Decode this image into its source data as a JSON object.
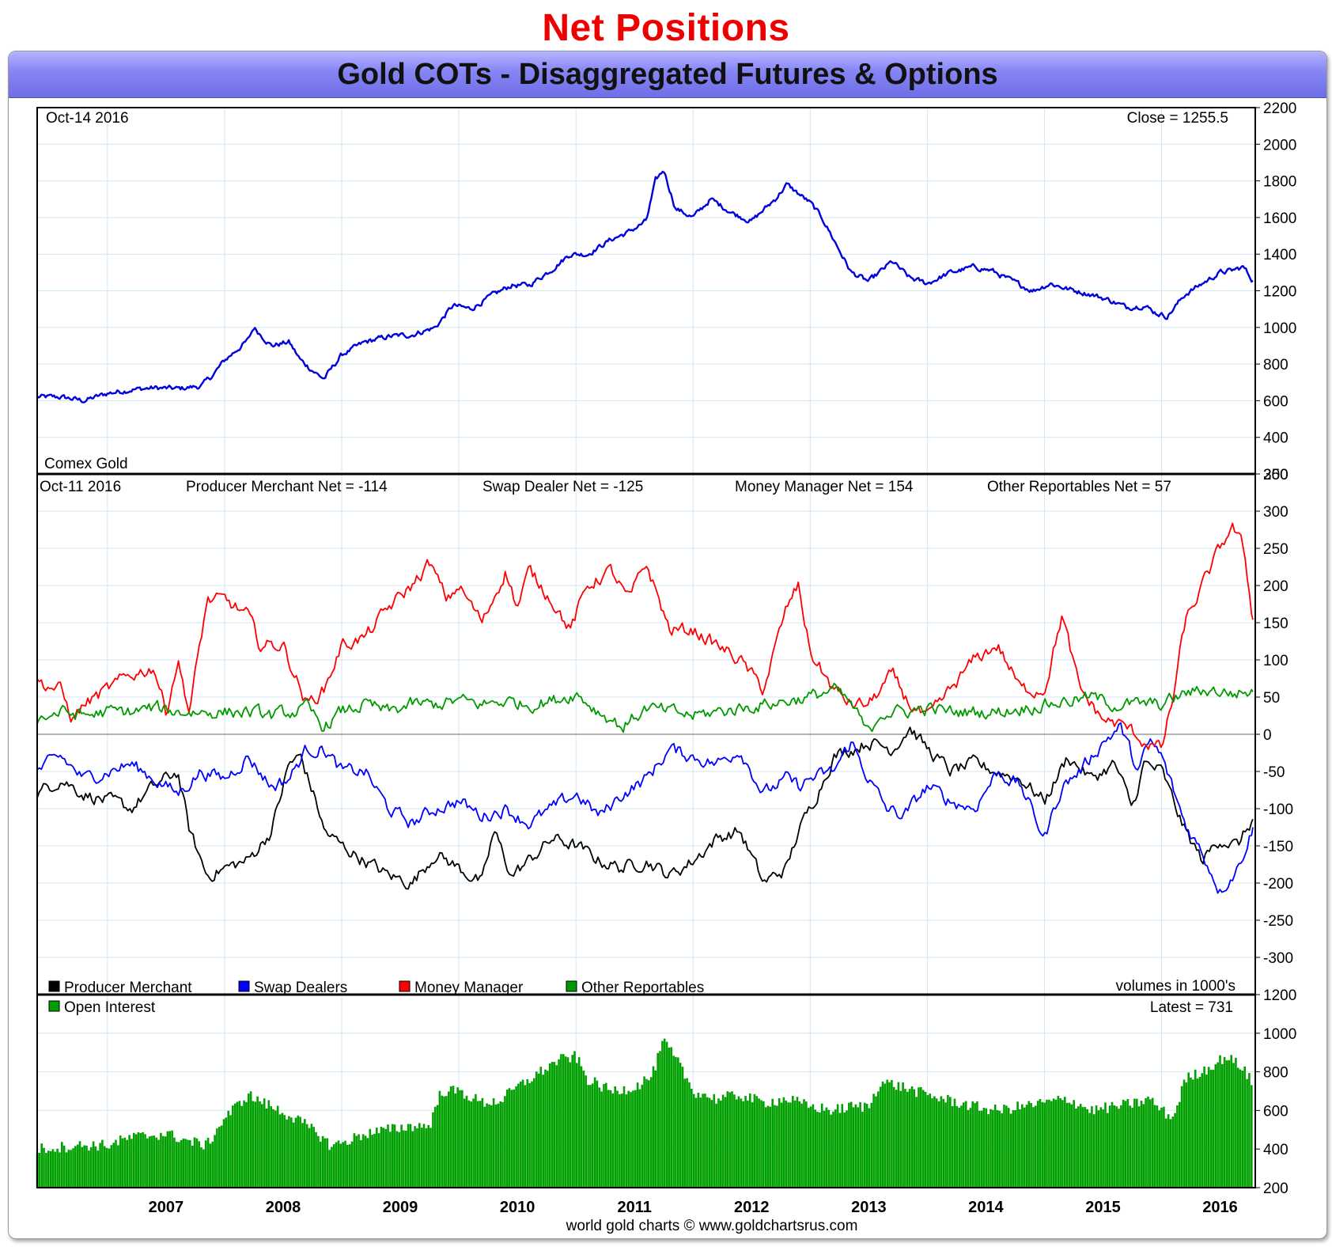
{
  "page": {
    "title": "Net Positions"
  },
  "header": {
    "title": "Gold COTs - Disaggregated Futures & Options"
  },
  "x_axis": {
    "labels": [
      "2007",
      "2008",
      "2009",
      "2010",
      "2011",
      "2012",
      "2013",
      "2014",
      "2015",
      "2016"
    ]
  },
  "footer": {
    "credit": "world gold charts © www.goldchartsrus.com"
  },
  "colors": {
    "price": "#0000dd",
    "producer": "#000000",
    "swap": "#0000ff",
    "money": "#ff0000",
    "other": "#009900",
    "oi": "#00a000"
  },
  "chart_data": [
    {
      "type": "line",
      "name": "price-panel",
      "title": "Comex Gold",
      "date_label": "Oct-14  2016",
      "close_label": "Close = 1255.5",
      "x_range": [
        2006.4,
        2016.8
      ],
      "ylim": [
        200,
        2200
      ],
      "y_ticks": [
        200,
        400,
        600,
        800,
        1000,
        1200,
        1400,
        1600,
        1800,
        2000,
        2200
      ],
      "series": [
        {
          "name": "Comex Gold",
          "color": "#0000dd",
          "x": [
            2006.4,
            2006.6,
            2006.8,
            2007.0,
            2007.2,
            2007.4,
            2007.6,
            2007.8,
            2007.9,
            2008.0,
            2008.2,
            2008.25,
            2008.4,
            2008.55,
            2008.65,
            2008.8,
            2008.85,
            2009.0,
            2009.2,
            2009.4,
            2009.6,
            2009.8,
            2009.95,
            2010.1,
            2010.3,
            2010.45,
            2010.6,
            2010.8,
            2010.95,
            2011.1,
            2011.3,
            2011.45,
            2011.6,
            2011.68,
            2011.75,
            2011.85,
            2012.0,
            2012.15,
            2012.35,
            2012.5,
            2012.7,
            2012.8,
            2013.0,
            2013.1,
            2013.25,
            2013.35,
            2013.5,
            2013.7,
            2013.85,
            2014.0,
            2014.2,
            2014.4,
            2014.55,
            2014.7,
            2014.9,
            2015.05,
            2015.2,
            2015.4,
            2015.55,
            2015.7,
            2015.85,
            2015.95,
            2016.05,
            2016.2,
            2016.35,
            2016.5,
            2016.6,
            2016.7,
            2016.78
          ],
          "y": [
            620,
            620,
            600,
            640,
            660,
            670,
            665,
            680,
            740,
            820,
            930,
            1000,
            900,
            920,
            820,
            740,
            720,
            850,
            920,
            950,
            960,
            1000,
            1120,
            1100,
            1180,
            1230,
            1230,
            1320,
            1400,
            1400,
            1480,
            1520,
            1580,
            1800,
            1860,
            1650,
            1600,
            1700,
            1620,
            1580,
            1700,
            1780,
            1680,
            1600,
            1420,
            1300,
            1250,
            1360,
            1270,
            1240,
            1300,
            1330,
            1310,
            1260,
            1200,
            1240,
            1210,
            1180,
            1150,
            1110,
            1120,
            1080,
            1060,
            1180,
            1240,
            1300,
            1310,
            1330,
            1255.5
          ]
        }
      ]
    },
    {
      "type": "line",
      "name": "net-positions-panel",
      "date_label": "Oct-11  2016",
      "header_values": [
        "Producer Merchant Net = -114",
        "Swap Dealer Net = -125",
        "Money Manager Net = 154",
        "Other Reportables Net = 57"
      ],
      "units_label": "volumes in 1000's",
      "x_range": [
        2006.4,
        2016.8
      ],
      "ylim": [
        -350,
        350
      ],
      "y_ticks": [
        -300,
        -250,
        -200,
        -150,
        -100,
        -50,
        0,
        50,
        100,
        150,
        200,
        250,
        300,
        350
      ],
      "legend": [
        "Producer Merchant",
        "Swap Dealers",
        "Money Manager",
        "Other Reportables"
      ],
      "series": [
        {
          "name": "Producer Merchant",
          "color": "#000000",
          "x": [
            2006.4,
            2006.6,
            2006.8,
            2007.0,
            2007.2,
            2007.4,
            2007.6,
            2007.7,
            2007.85,
            2008.0,
            2008.2,
            2008.4,
            2008.55,
            2008.65,
            2008.8,
            2008.85,
            2009.0,
            2009.2,
            2009.4,
            2009.6,
            2009.8,
            2010.0,
            2010.2,
            2010.3,
            2010.45,
            2010.6,
            2010.8,
            2011.0,
            2011.2,
            2011.4,
            2011.6,
            2011.8,
            2012.0,
            2012.2,
            2012.4,
            2012.6,
            2012.8,
            2012.9,
            2013.0,
            2013.2,
            2013.35,
            2013.5,
            2013.7,
            2013.85,
            2014.0,
            2014.2,
            2014.4,
            2014.6,
            2014.8,
            2015.0,
            2015.2,
            2015.4,
            2015.6,
            2015.75,
            2015.85,
            2016.0,
            2016.2,
            2016.35,
            2016.5,
            2016.65,
            2016.78
          ],
          "y": [
            -80,
            -60,
            -80,
            -90,
            -100,
            -70,
            -50,
            -130,
            -190,
            -180,
            -170,
            -130,
            -40,
            -30,
            -100,
            -130,
            -150,
            -170,
            -190,
            -200,
            -160,
            -180,
            -200,
            -130,
            -190,
            -170,
            -140,
            -150,
            -170,
            -180,
            -170,
            -190,
            -170,
            -140,
            -130,
            -200,
            -180,
            -130,
            -100,
            -30,
            -20,
            -10,
            -20,
            10,
            -20,
            -50,
            -40,
            -50,
            -60,
            -90,
            -30,
            -60,
            -40,
            -100,
            -40,
            -50,
            -130,
            -170,
            -140,
            -150,
            -114
          ]
        },
        {
          "name": "Swap Dealers",
          "color": "#0000ff",
          "x": [
            2006.4,
            2006.6,
            2006.8,
            2007.0,
            2007.2,
            2007.4,
            2007.6,
            2007.8,
            2008.0,
            2008.2,
            2008.4,
            2008.55,
            2008.7,
            2008.85,
            2009.0,
            2009.2,
            2009.4,
            2009.6,
            2009.8,
            2010.0,
            2010.2,
            2010.4,
            2010.6,
            2010.8,
            2011.0,
            2011.2,
            2011.4,
            2011.6,
            2011.8,
            2012.0,
            2012.2,
            2012.4,
            2012.6,
            2012.8,
            2012.9,
            2013.0,
            2013.2,
            2013.35,
            2013.5,
            2013.65,
            2013.8,
            2014.0,
            2014.2,
            2014.4,
            2014.6,
            2014.8,
            2015.0,
            2015.15,
            2015.3,
            2015.5,
            2015.65,
            2015.8,
            2015.9,
            2016.0,
            2016.2,
            2016.35,
            2016.5,
            2016.65,
            2016.78
          ],
          "y": [
            -50,
            -30,
            -60,
            -50,
            -40,
            -60,
            -80,
            -50,
            -60,
            -30,
            -70,
            -60,
            -20,
            -20,
            -50,
            -50,
            -100,
            -120,
            -100,
            -90,
            -110,
            -100,
            -120,
            -100,
            -80,
            -110,
            -80,
            -60,
            -20,
            -30,
            -40,
            -20,
            -80,
            -60,
            -70,
            -60,
            -50,
            -10,
            -60,
            -100,
            -110,
            -70,
            -90,
            -100,
            -50,
            -70,
            -140,
            -70,
            -50,
            -10,
            10,
            -50,
            -10,
            -30,
            -120,
            -160,
            -210,
            -180,
            -125
          ]
        },
        {
          "name": "Money Manager",
          "color": "#ff0000",
          "x": [
            2006.4,
            2006.6,
            2006.7,
            2006.8,
            2007.0,
            2007.2,
            2007.4,
            2007.5,
            2007.6,
            2007.7,
            2007.85,
            2008.0,
            2008.2,
            2008.3,
            2008.5,
            2008.55,
            2008.7,
            2008.85,
            2009.0,
            2009.2,
            2009.4,
            2009.6,
            2009.75,
            2009.9,
            2010.0,
            2010.2,
            2010.4,
            2010.5,
            2010.6,
            2010.8,
            2010.95,
            2011.1,
            2011.3,
            2011.45,
            2011.6,
            2011.8,
            2012.0,
            2012.2,
            2012.4,
            2012.6,
            2012.8,
            2012.9,
            2013.0,
            2013.2,
            2013.35,
            2013.5,
            2013.7,
            2013.85,
            2014.0,
            2014.2,
            2014.4,
            2014.6,
            2014.8,
            2015.0,
            2015.15,
            2015.3,
            2015.5,
            2015.7,
            2015.85,
            2016.0,
            2016.1,
            2016.2,
            2016.35,
            2016.5,
            2016.6,
            2016.7,
            2016.78
          ],
          "y": [
            70,
            60,
            20,
            40,
            60,
            80,
            90,
            30,
            100,
            30,
            180,
            180,
            160,
            120,
            120,
            100,
            40,
            60,
            120,
            130,
            170,
            200,
            230,
            180,
            200,
            150,
            220,
            170,
            220,
            180,
            140,
            200,
            220,
            180,
            230,
            140,
            140,
            120,
            100,
            60,
            170,
            200,
            110,
            60,
            40,
            40,
            80,
            40,
            20,
            60,
            100,
            120,
            60,
            60,
            160,
            60,
            20,
            10,
            -10,
            -20,
            50,
            150,
            200,
            250,
            280,
            250,
            154
          ]
        },
        {
          "name": "Other Reportables",
          "color": "#009900",
          "x": [
            2006.4,
            2006.6,
            2006.8,
            2007.0,
            2007.2,
            2007.4,
            2007.6,
            2007.8,
            2008.0,
            2008.2,
            2008.4,
            2008.6,
            2008.7,
            2008.85,
            2009.0,
            2009.2,
            2009.4,
            2009.6,
            2009.8,
            2010.0,
            2010.2,
            2010.4,
            2010.6,
            2010.8,
            2011.0,
            2011.2,
            2011.4,
            2011.6,
            2011.8,
            2012.0,
            2012.2,
            2012.4,
            2012.6,
            2012.8,
            2013.0,
            2013.2,
            2013.35,
            2013.5,
            2013.6,
            2013.8,
            2014.0,
            2014.2,
            2014.4,
            2014.6,
            2014.8,
            2015.0,
            2015.2,
            2015.4,
            2015.6,
            2015.8,
            2016.0,
            2016.2,
            2016.4,
            2016.6,
            2016.78
          ],
          "y": [
            20,
            30,
            25,
            30,
            30,
            35,
            30,
            30,
            30,
            30,
            25,
            30,
            35,
            10,
            30,
            40,
            30,
            40,
            40,
            45,
            40,
            45,
            40,
            45,
            55,
            30,
            10,
            35,
            30,
            25,
            30,
            35,
            40,
            45,
            50,
            60,
            40,
            0,
            30,
            30,
            35,
            30,
            30,
            30,
            35,
            40,
            45,
            50,
            40,
            40,
            40,
            55,
            60,
            55,
            57
          ]
        }
      ]
    },
    {
      "type": "bar",
      "name": "open-interest-panel",
      "legend": [
        "Open Interest"
      ],
      "latest_label": "Latest = 731",
      "x_range": [
        2006.4,
        2016.8
      ],
      "ylim": [
        200,
        1200
      ],
      "y_ticks": [
        200,
        400,
        600,
        800,
        1000,
        1200
      ],
      "series": [
        {
          "name": "Open Interest",
          "color": "#00a000",
          "x": [
            2006.4,
            2006.8,
            2007.0,
            2007.2,
            2007.5,
            2007.7,
            2007.85,
            2008.0,
            2008.2,
            2008.4,
            2008.6,
            2008.8,
            2008.9,
            2009.0,
            2009.2,
            2009.4,
            2009.6,
            2009.75,
            2009.85,
            2010.0,
            2010.2,
            2010.35,
            2010.5,
            2010.7,
            2010.85,
            2011.0,
            2011.1,
            2011.3,
            2011.5,
            2011.65,
            2011.75,
            2011.9,
            2012.0,
            2012.2,
            2012.4,
            2012.6,
            2012.8,
            2013.0,
            2013.2,
            2013.35,
            2013.5,
            2013.6,
            2013.8,
            2014.0,
            2014.2,
            2014.4,
            2014.6,
            2014.8,
            2015.0,
            2015.2,
            2015.4,
            2015.6,
            2015.8,
            2015.9,
            2016.0,
            2016.1,
            2016.2,
            2016.4,
            2016.55,
            2016.7,
            2016.78
          ],
          "y": [
            400,
            420,
            420,
            460,
            480,
            440,
            420,
            560,
            680,
            620,
            560,
            480,
            420,
            430,
            480,
            500,
            520,
            520,
            700,
            700,
            640,
            650,
            720,
            800,
            860,
            880,
            760,
            700,
            720,
            780,
            960,
            820,
            700,
            660,
            680,
            640,
            660,
            620,
            600,
            620,
            620,
            750,
            720,
            680,
            650,
            620,
            600,
            620,
            640,
            660,
            600,
            620,
            640,
            660,
            600,
            560,
            760,
            820,
            880,
            820,
            731
          ]
        }
      ]
    }
  ]
}
